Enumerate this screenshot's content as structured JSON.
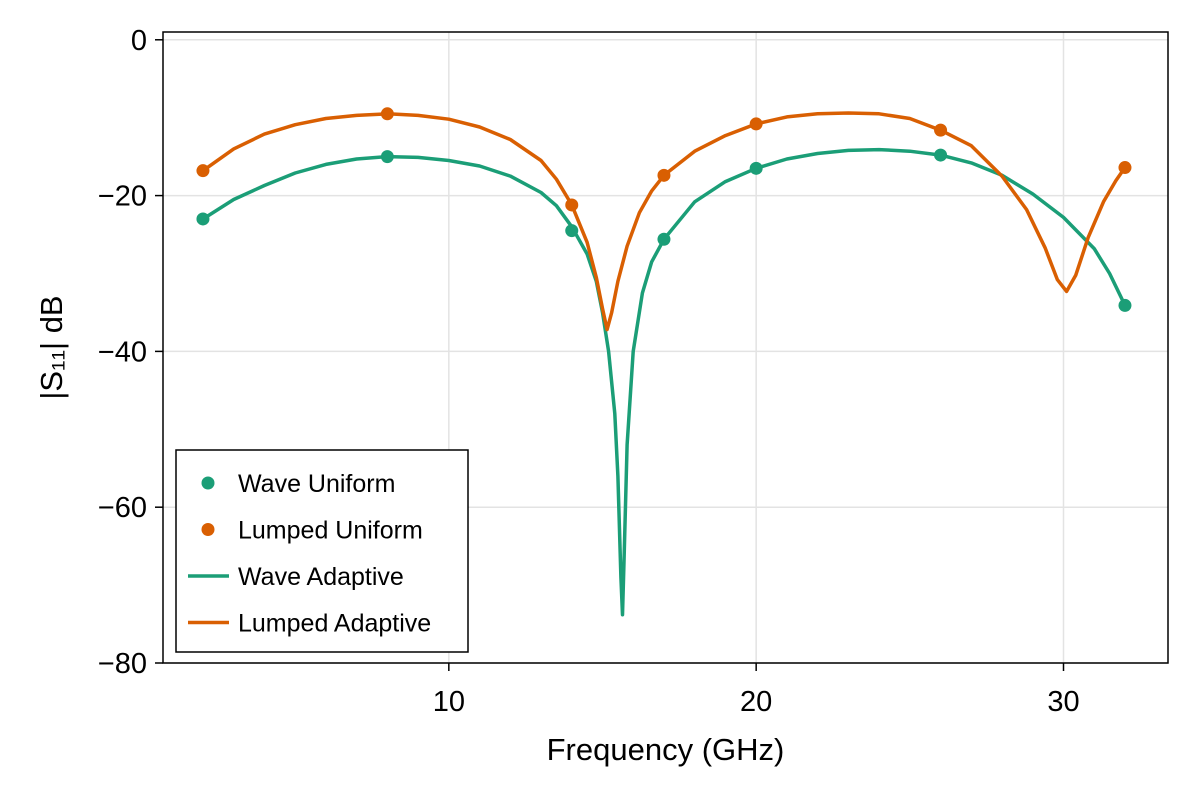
{
  "chart_data": {
    "type": "line",
    "xlabel": "Frequency (GHz)",
    "ylabel": "|S₁₁| dB",
    "xlim": [
      0.7,
      33.4
    ],
    "ylim": [
      -80,
      1
    ],
    "xticks": [
      10,
      20,
      30
    ],
    "yticks": [
      0,
      -20,
      -40,
      -60,
      -80
    ],
    "ytick_labels": [
      "0",
      "−20",
      "−40",
      "−60",
      "−80"
    ],
    "grid": true,
    "legend_position": "bottom-left",
    "series": [
      {
        "name": "Wave Uniform",
        "kind": "scatter",
        "color": "#1b9e77",
        "x": [
          2,
          8,
          14,
          17,
          20,
          26,
          32
        ],
        "y": [
          -23,
          -15,
          -24.5,
          -25.6,
          -16.5,
          -14.8,
          -34.1
        ]
      },
      {
        "name": "Lumped Uniform",
        "kind": "scatter",
        "color": "#d95f02",
        "x": [
          2,
          8,
          14,
          17,
          20,
          26,
          32
        ],
        "y": [
          -16.8,
          -9.5,
          -21.2,
          -17.4,
          -10.8,
          -11.6,
          -16.4
        ]
      },
      {
        "name": "Wave Adaptive",
        "kind": "line",
        "color": "#1b9e77",
        "x": [
          2,
          3,
          4,
          5,
          6,
          7,
          8,
          9,
          10,
          11,
          12,
          13,
          13.5,
          14,
          14.5,
          14.8,
          15.0,
          15.2,
          15.4,
          15.5,
          15.6,
          15.65,
          15.7,
          15.8,
          16.0,
          16.3,
          16.6,
          17,
          18,
          19,
          20,
          21,
          22,
          23,
          24,
          25,
          26,
          27,
          28,
          29,
          30,
          31,
          31.5,
          32
        ],
        "y": [
          -23,
          -20.5,
          -18.7,
          -17.1,
          -16.0,
          -15.3,
          -15,
          -15.1,
          -15.5,
          -16.2,
          -17.5,
          -19.6,
          -21.3,
          -24,
          -27.5,
          -31,
          -35,
          -40,
          -48,
          -56,
          -69,
          -73.8,
          -67,
          -52,
          -40,
          -32.5,
          -28.5,
          -25.6,
          -20.8,
          -18.2,
          -16.5,
          -15.3,
          -14.6,
          -14.2,
          -14.1,
          -14.3,
          -14.8,
          -15.8,
          -17.4,
          -19.8,
          -22.8,
          -26.8,
          -30,
          -34.1
        ]
      },
      {
        "name": "Lumped Adaptive",
        "kind": "line",
        "color": "#d95f02",
        "x": [
          2,
          3,
          4,
          5,
          6,
          7,
          8,
          9,
          10,
          11,
          12,
          13,
          13.5,
          14,
          14.5,
          14.8,
          15.0,
          15.15,
          15.3,
          15.5,
          15.8,
          16.2,
          16.6,
          17,
          18,
          19,
          20,
          21,
          22,
          23,
          24,
          25,
          26,
          27,
          28,
          28.8,
          29.4,
          29.8,
          30.1,
          30.4,
          30.8,
          31.3,
          31.7,
          32
        ],
        "y": [
          -16.8,
          -14,
          -12.1,
          -10.9,
          -10.1,
          -9.7,
          -9.5,
          -9.7,
          -10.2,
          -11.2,
          -12.8,
          -15.5,
          -17.9,
          -21.2,
          -26,
          -30.5,
          -34.5,
          -37.2,
          -35,
          -31,
          -26.5,
          -22.2,
          -19.4,
          -17.4,
          -14.3,
          -12.3,
          -10.8,
          -9.9,
          -9.5,
          -9.4,
          -9.5,
          -10.1,
          -11.6,
          -13.6,
          -17.5,
          -21.8,
          -26.7,
          -30.8,
          -32.3,
          -30.2,
          -25.4,
          -20.8,
          -18.1,
          -16.4
        ]
      }
    ]
  }
}
